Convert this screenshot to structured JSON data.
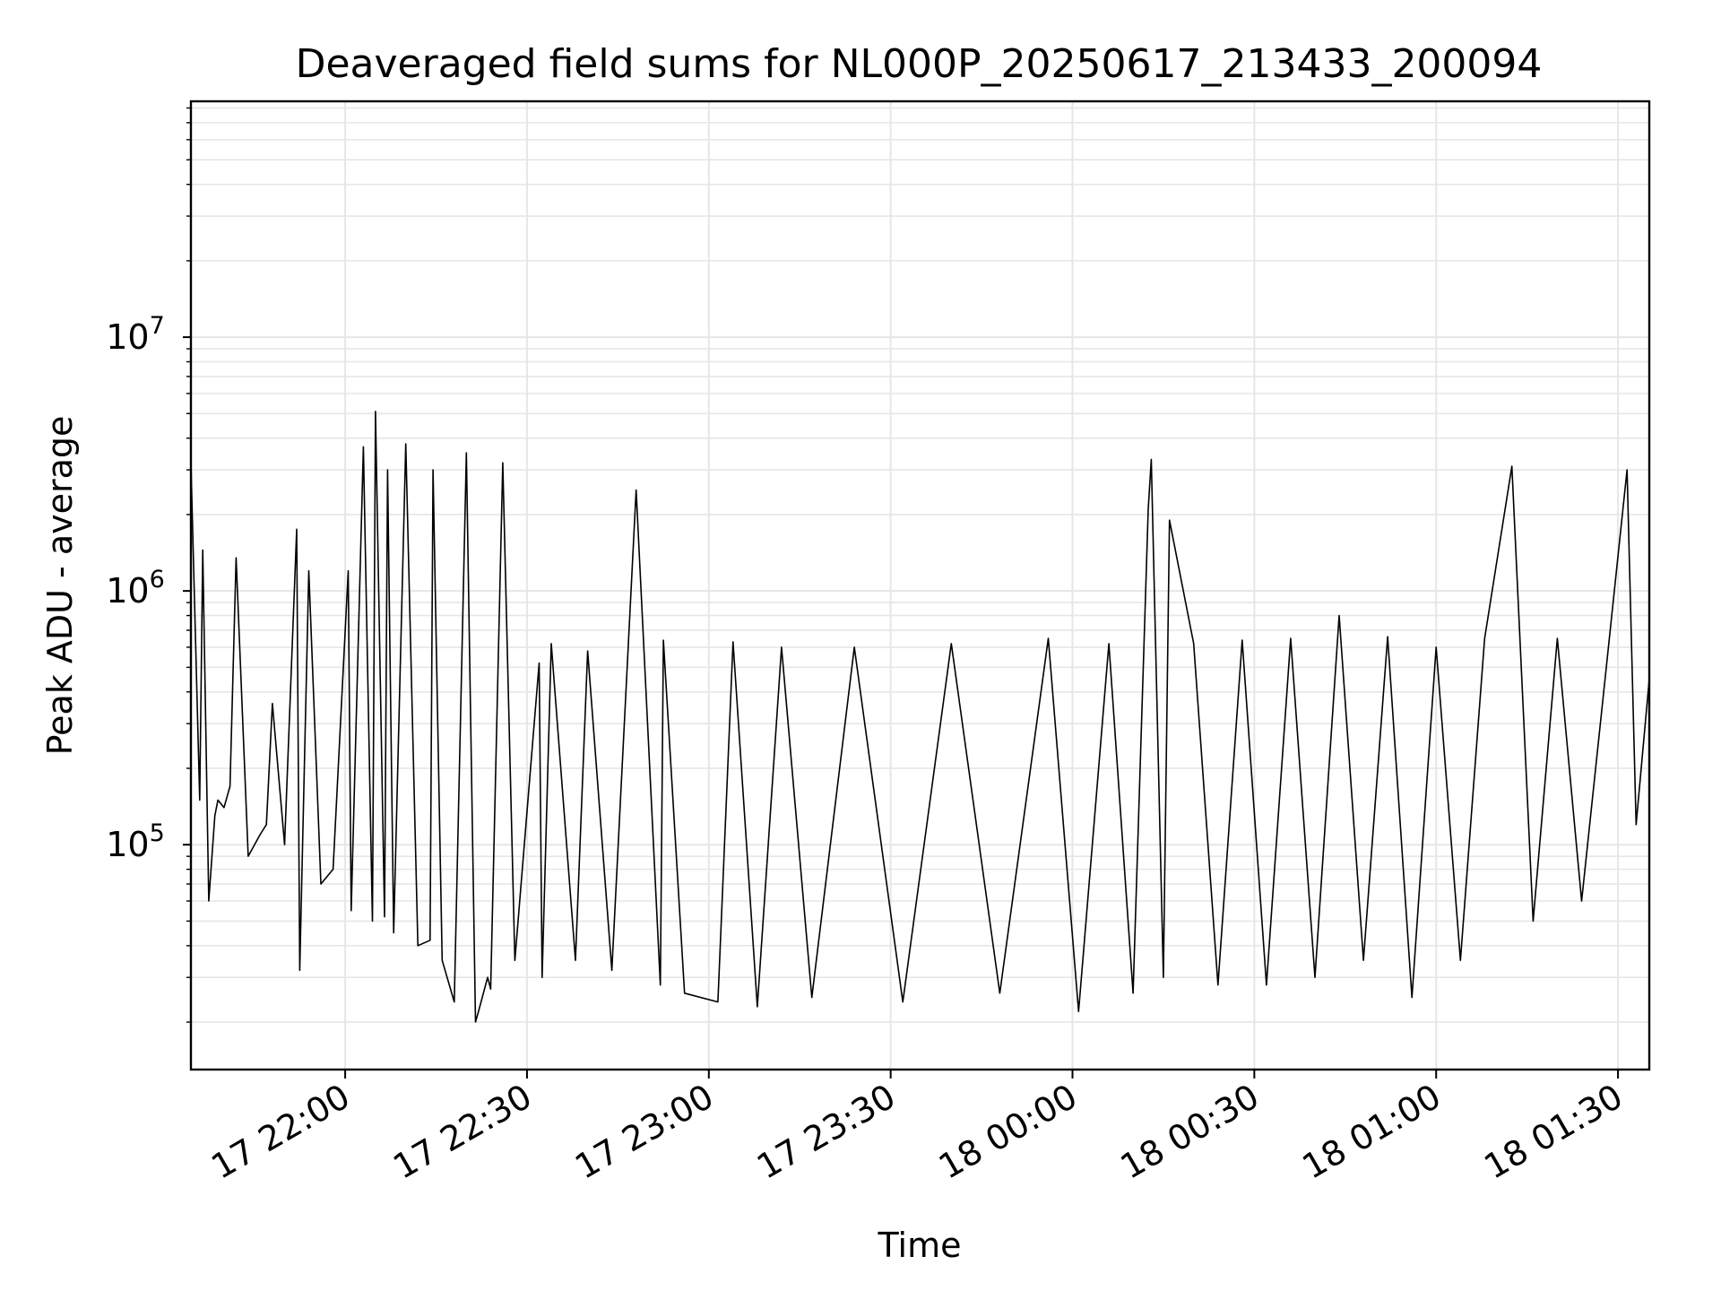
{
  "chart_data": {
    "type": "line",
    "title": "Deaveraged field sums for NL000P_20250617_213433_200094",
    "xlabel": "Time",
    "ylabel": "Peak ADU - average",
    "y_scale": "log",
    "ylim": [
      13000,
      85000000
    ],
    "xlim": [
      "2025-06-17 21:34:33",
      "2025-06-18 01:35:10"
    ],
    "grid": true,
    "line_color": "#000000",
    "grid_color": "#e6e6e6",
    "x_ticks": [
      {
        "value": "2025-06-17 22:00:00",
        "label": "17 22:00"
      },
      {
        "value": "2025-06-17 22:30:00",
        "label": "17 22:30"
      },
      {
        "value": "2025-06-17 23:00:00",
        "label": "17 23:00"
      },
      {
        "value": "2025-06-17 23:30:00",
        "label": "17 23:30"
      },
      {
        "value": "2025-06-18 00:00:00",
        "label": "18 00:00"
      },
      {
        "value": "2025-06-18 00:30:00",
        "label": "18 00:30"
      },
      {
        "value": "2025-06-18 01:00:00",
        "label": "18 01:00"
      },
      {
        "value": "2025-06-18 01:30:00",
        "label": "18 01:30"
      }
    ],
    "y_ticks": [
      {
        "value": 100000,
        "base": "10",
        "exp": "5"
      },
      {
        "value": 1000000,
        "base": "10",
        "exp": "6"
      },
      {
        "value": 10000000,
        "base": "10",
        "exp": "7"
      }
    ],
    "series": [
      {
        "x": [
          "2025-06-17 21:34:33",
          "2025-06-17 21:36:00",
          "2025-06-17 21:36:30",
          "2025-06-17 21:37:30",
          "2025-06-17 21:38:30",
          "2025-06-17 21:39:00",
          "2025-06-17 21:40:00",
          "2025-06-17 21:41:00",
          "2025-06-17 21:42:00",
          "2025-06-17 21:44:00",
          "2025-06-17 21:46:00",
          "2025-06-17 21:47:00",
          "2025-06-17 21:48:00",
          "2025-06-17 21:50:00",
          "2025-06-17 21:52:00",
          "2025-06-17 21:52:30",
          "2025-06-17 21:54:00",
          "2025-06-17 21:56:00",
          "2025-06-17 21:58:00",
          "2025-06-17 22:00:30",
          "2025-06-17 22:01:00",
          "2025-06-17 22:03:00",
          "2025-06-17 22:04:30",
          "2025-06-17 22:05:00",
          "2025-06-17 22:06:30",
          "2025-06-17 22:07:00",
          "2025-06-17 22:08:00",
          "2025-06-17 22:10:00",
          "2025-06-17 22:12:00",
          "2025-06-17 22:14:00",
          "2025-06-17 22:14:30",
          "2025-06-17 22:16:00",
          "2025-06-17 22:18:00",
          "2025-06-17 22:20:00",
          "2025-06-17 22:21:30",
          "2025-06-17 22:22:00",
          "2025-06-17 22:23:30",
          "2025-06-17 22:24:00",
          "2025-06-17 22:26:00",
          "2025-06-17 22:28:00",
          "2025-06-17 22:32:00",
          "2025-06-17 22:32:30",
          "2025-06-17 22:34:00",
          "2025-06-17 22:38:00",
          "2025-06-17 22:40:00",
          "2025-06-17 22:44:00",
          "2025-06-17 22:48:00",
          "2025-06-17 22:52:00",
          "2025-06-17 22:52:30",
          "2025-06-17 22:56:00",
          "2025-06-17 23:01:30",
          "2025-06-17 23:04:00",
          "2025-06-17 23:08:00",
          "2025-06-17 23:12:00",
          "2025-06-17 23:17:00",
          "2025-06-17 23:24:00",
          "2025-06-17 23:32:00",
          "2025-06-17 23:40:00",
          "2025-06-17 23:48:00",
          "2025-06-17 23:56:00",
          "2025-06-18 00:01:00",
          "2025-06-18 00:06:00",
          "2025-06-18 00:10:00",
          "2025-06-18 00:12:30",
          "2025-06-18 00:13:00",
          "2025-06-18 00:15:00",
          "2025-06-18 00:16:00",
          "2025-06-18 00:20:00",
          "2025-06-18 00:24:00",
          "2025-06-18 00:28:00",
          "2025-06-18 00:32:00",
          "2025-06-18 00:36:00",
          "2025-06-18 00:40:00",
          "2025-06-18 00:44:00",
          "2025-06-18 00:48:00",
          "2025-06-18 00:52:00",
          "2025-06-18 00:56:00",
          "2025-06-18 01:00:00",
          "2025-06-18 01:04:00",
          "2025-06-18 01:08:00",
          "2025-06-18 01:12:30",
          "2025-06-18 01:16:00",
          "2025-06-18 01:20:00",
          "2025-06-18 01:24:00",
          "2025-06-18 01:28:00",
          "2025-06-18 01:31:30",
          "2025-06-18 01:33:00",
          "2025-06-18 01:35:10"
        ],
        "y": [
          3200000,
          150000,
          1450000,
          60000,
          130000,
          150000,
          140000,
          170000,
          1350000,
          90000,
          110000,
          120000,
          360000,
          100000,
          1750000,
          32000,
          1200000,
          70000,
          80000,
          1200000,
          55000,
          3700000,
          50000,
          5100000,
          52000,
          3000000,
          45000,
          3800000,
          40000,
          42000,
          3000000,
          35000,
          24000,
          3500000,
          20000,
          22000,
          30000,
          27000,
          3200000,
          35000,
          520000,
          30000,
          620000,
          35000,
          580000,
          32000,
          2500000,
          28000,
          640000,
          26000,
          24000,
          630000,
          23000,
          600000,
          25000,
          600000,
          24000,
          620000,
          26000,
          650000,
          22000,
          620000,
          26000,
          2100000,
          3300000,
          30000,
          1900000,
          620000,
          28000,
          640000,
          28000,
          650000,
          30000,
          800000,
          35000,
          660000,
          25000,
          600000,
          35000,
          650000,
          3100000,
          50000,
          650000,
          60000,
          480000,
          3000000,
          120000,
          450000
        ]
      }
    ]
  }
}
